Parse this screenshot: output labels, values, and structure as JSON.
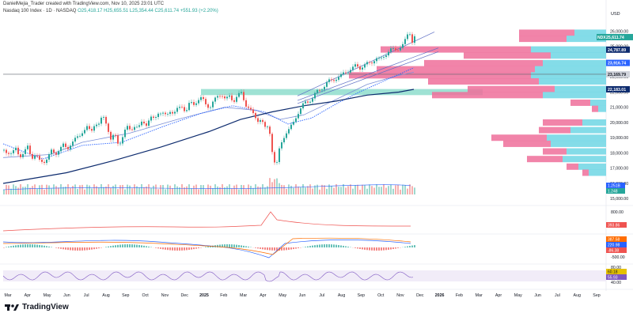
{
  "header": {
    "creator": "DanielMejia_Trader created with TradingView.com, Nov 10, 2025 23:01 UTC",
    "symbol": "Nasdaq 100 Index · 1D · NASDAQ",
    "ohlc": "O25,418.17  H25,655.51  L25,354.44  C25,611.74  +551.93 (+2.20%)"
  },
  "brand": "TradingView",
  "colors": {
    "up": "#26a69a",
    "down": "#ef5350",
    "ma_dark": "#0d2b6e",
    "ma_light": "#7b8fd6",
    "dot": "#2962ff",
    "zone": "#7fd8c6",
    "vp_pink": "#ef6f9a",
    "vp_cyan": "#6fd6e4",
    "sub_red": "#ef5350",
    "rsi": "#7e57c2"
  },
  "chart_data": {
    "type": "candlestick",
    "title": "Nasdaq 100 Index · 1D · NASDAQ",
    "currency": "USD",
    "x_labels": [
      "Mar",
      "Apr",
      "May",
      "Jun",
      "Jul",
      "Aug",
      "Sep",
      "Oct",
      "Nov",
      "Dec",
      "2025",
      "Feb",
      "Mar",
      "Apr",
      "May",
      "Jun",
      "Jul",
      "Aug",
      "Sep",
      "Oct",
      "Nov",
      "Dec",
      "2026",
      "Feb",
      "Mar",
      "Apr",
      "May",
      "Jun",
      "Jul",
      "Aug",
      "Sep"
    ],
    "y_ticks": [
      "26,000.00",
      "25,000.00",
      "24,000.00",
      "23,000.00",
      "22,000.00",
      "21,000.00",
      "20,000.00",
      "19,000.00",
      "18,000.00",
      "17,000.00",
      "16,000.00",
      "15,000.00"
    ],
    "ylim": [
      14700,
      26700
    ],
    "price_path": [
      [
        0,
        18200
      ],
      [
        5,
        18050
      ],
      [
        10,
        17900
      ],
      [
        15,
        18300
      ],
      [
        20,
        17800
      ],
      [
        25,
        17950
      ],
      [
        30,
        18400
      ],
      [
        35,
        17700
      ],
      [
        40,
        17900
      ],
      [
        45,
        17450
      ],
      [
        50,
        17400
      ],
      [
        55,
        17700
      ],
      [
        60,
        18100
      ],
      [
        65,
        17900
      ],
      [
        70,
        18300
      ],
      [
        75,
        18500
      ],
      [
        80,
        18200
      ],
      [
        85,
        18700
      ],
      [
        90,
        18900
      ],
      [
        95,
        19050
      ],
      [
        100,
        19500
      ],
      [
        105,
        19700
      ],
      [
        110,
        19300
      ],
      [
        115,
        20000
      ],
      [
        120,
        19900
      ],
      [
        125,
        20400
      ],
      [
        130,
        19900
      ],
      [
        135,
        18900
      ],
      [
        140,
        19200
      ],
      [
        145,
        18500
      ],
      [
        150,
        19100
      ],
      [
        155,
        19700
      ],
      [
        160,
        19500
      ],
      [
        165,
        19800
      ],
      [
        170,
        19600
      ],
      [
        175,
        20100
      ],
      [
        180,
        19900
      ],
      [
        185,
        20300
      ],
      [
        190,
        20200
      ],
      [
        195,
        20700
      ],
      [
        200,
        20600
      ],
      [
        205,
        20400
      ],
      [
        210,
        20800
      ],
      [
        215,
        20600
      ],
      [
        220,
        20900
      ],
      [
        225,
        21100
      ],
      [
        230,
        20700
      ],
      [
        235,
        21300
      ],
      [
        240,
        21200
      ],
      [
        245,
        21500
      ],
      [
        250,
        21600
      ],
      [
        255,
        21200
      ],
      [
        260,
        21000
      ],
      [
        265,
        21400
      ],
      [
        270,
        21700
      ],
      [
        275,
        21900
      ],
      [
        280,
        21500
      ],
      [
        285,
        21700
      ],
      [
        290,
        21400
      ],
      [
        295,
        21800
      ],
      [
        300,
        21900
      ],
      [
        305,
        21200
      ],
      [
        310,
        21000
      ],
      [
        315,
        20500
      ],
      [
        320,
        20100
      ],
      [
        325,
        20300
      ],
      [
        330,
        19600
      ],
      [
        335,
        19700
      ],
      [
        340,
        17800
      ],
      [
        344,
        17000
      ],
      [
        348,
        18200
      ],
      [
        352,
        18900
      ],
      [
        356,
        19300
      ],
      [
        360,
        19500
      ],
      [
        365,
        19900
      ],
      [
        370,
        20500
      ],
      [
        375,
        20900
      ],
      [
        380,
        21300
      ],
      [
        385,
        21400
      ],
      [
        390,
        21600
      ],
      [
        395,
        22000
      ],
      [
        400,
        22200
      ],
      [
        405,
        22400
      ],
      [
        410,
        22700
      ],
      [
        415,
        22800
      ],
      [
        420,
        22900
      ],
      [
        425,
        23000
      ],
      [
        430,
        23300
      ],
      [
        435,
        23400
      ],
      [
        440,
        23500
      ],
      [
        445,
        23800
      ],
      [
        450,
        23600
      ],
      [
        455,
        23700
      ],
      [
        460,
        23900
      ],
      [
        465,
        24000
      ],
      [
        470,
        24200
      ],
      [
        475,
        24100
      ],
      [
        480,
        24400
      ],
      [
        485,
        24600
      ],
      [
        490,
        24800
      ],
      [
        495,
        24800
      ],
      [
        500,
        24900
      ],
      [
        505,
        25100
      ],
      [
        510,
        25800
      ],
      [
        514,
        25950
      ],
      [
        517,
        25000
      ],
      [
        519,
        25611.74
      ]
    ],
    "indicators": {
      "ma_long_path": [
        [
          0,
          16000
        ],
        [
          80,
          16700
        ],
        [
          140,
          17500
        ],
        [
          200,
          18400
        ],
        [
          260,
          19400
        ],
        [
          300,
          20200
        ],
        [
          340,
          20700
        ],
        [
          380,
          21100
        ],
        [
          420,
          21400
        ],
        [
          460,
          21800
        ],
        [
          500,
          22000
        ],
        [
          519,
          22183.01
        ]
      ],
      "ma_mid_path": [
        [
          0,
          17700
        ],
        [
          60,
          17900
        ],
        [
          100,
          18700
        ],
        [
          160,
          19300
        ],
        [
          220,
          20200
        ],
        [
          280,
          21000
        ],
        [
          320,
          20800
        ],
        [
          350,
          20200
        ],
        [
          380,
          20500
        ],
        [
          420,
          21500
        ],
        [
          460,
          22500
        ],
        [
          500,
          23100
        ],
        [
          519,
          23300
        ]
      ],
      "ma_dotted_path": [
        [
          0,
          18600
        ],
        [
          50,
          17600
        ],
        [
          100,
          18500
        ],
        [
          150,
          18700
        ],
        [
          200,
          19700
        ],
        [
          250,
          20600
        ],
        [
          290,
          21100
        ],
        [
          330,
          20700
        ],
        [
          360,
          19900
        ],
        [
          390,
          20300
        ],
        [
          420,
          21200
        ],
        [
          450,
          22000
        ],
        [
          480,
          22700
        ],
        [
          519,
          23600
        ]
      ],
      "channel": [
        {
          "from": [
            372,
            21750
          ],
          "to": [
            545,
            25950
          ]
        },
        {
          "from": [
            372,
            21450
          ],
          "to": [
            550,
            24900
          ]
        },
        {
          "from": [
            372,
            21250
          ],
          "to": [
            550,
            24650
          ]
        }
      ],
      "horizontal_line": 23169.79,
      "support_zone": [
        21800,
        22200
      ],
      "zone_start_x": 250,
      "zone_end_x": 606
    },
    "price_labels": [
      {
        "label": "NDX",
        "value": "25,611.74",
        "y": 25611.74,
        "color": "#26a69a"
      },
      {
        "label": "",
        "value": "24,787.89",
        "y": 24787.89,
        "color": "#0d2b6e"
      },
      {
        "label": "",
        "value": "23,916.74",
        "y": 23916.74,
        "color": "#2962ff"
      },
      {
        "label": "",
        "value": "23,169.79",
        "y": 23169.79,
        "color": "#d1d4dc",
        "text_color": "#131722"
      },
      {
        "label": "",
        "value": "22,183.01",
        "y": 22183.01,
        "color": "#0d2b6e"
      }
    ],
    "volume_profile": [
      {
        "price": 25900,
        "pink": 70,
        "cyan": 40
      },
      {
        "price": 25500,
        "pink": 60,
        "cyan": 50
      },
      {
        "price": 24800,
        "pink": 190,
        "cyan": 95
      },
      {
        "price": 24400,
        "pink": 110,
        "cyan": 70
      },
      {
        "price": 23900,
        "pink": 150,
        "cyan": 80
      },
      {
        "price": 23500,
        "pink": 200,
        "cyan": 90
      },
      {
        "price": 23100,
        "pink": 230,
        "cyan": 95
      },
      {
        "price": 22700,
        "pink": 140,
        "cyan": 85
      },
      {
        "price": 22200,
        "pink": 110,
        "cyan": 65
      },
      {
        "price": 21800,
        "pink": 140,
        "cyan": 80
      },
      {
        "price": 21300,
        "pink": 25,
        "cyan": 20
      },
      {
        "price": 20900,
        "pink": 8,
        "cyan": 10
      },
      {
        "price": 20000,
        "pink": 50,
        "cyan": 30
      },
      {
        "price": 19500,
        "pink": 40,
        "cyan": 45
      },
      {
        "price": 19000,
        "pink": 70,
        "cyan": 75
      },
      {
        "price": 18600,
        "pink": 60,
        "cyan": 70
      },
      {
        "price": 18100,
        "pink": 30,
        "cyan": 50
      },
      {
        "price": 17600,
        "pink": 45,
        "cyan": 55
      },
      {
        "price": 17100,
        "pink": 15,
        "cyan": 35
      },
      {
        "price": 16700,
        "pink": 8,
        "cyan": 22
      }
    ],
    "volume_labels": [
      "1.251B",
      "1.248"
    ],
    "sub_panels": [
      {
        "name": "oscillator",
        "ticks": [
          "800.00",
          "-500.00"
        ],
        "labels": [
          {
            "value": "393.86",
            "color": "#ef5350"
          }
        ]
      },
      {
        "name": "macd",
        "labels": [
          {
            "value": "387.58",
            "color": "#ff6d00"
          },
          {
            "value": "220.98",
            "color": "#2962ff"
          },
          {
            "value": "-86.38",
            "color": "#ef5350"
          }
        ]
      },
      {
        "name": "rsi",
        "ticks": [
          "80.00",
          "40.00"
        ],
        "labels": [
          {
            "value": "60.18",
            "color": "#e5c100"
          },
          {
            "value": "55.93",
            "color": "#7e57c2"
          }
        ]
      }
    ]
  }
}
